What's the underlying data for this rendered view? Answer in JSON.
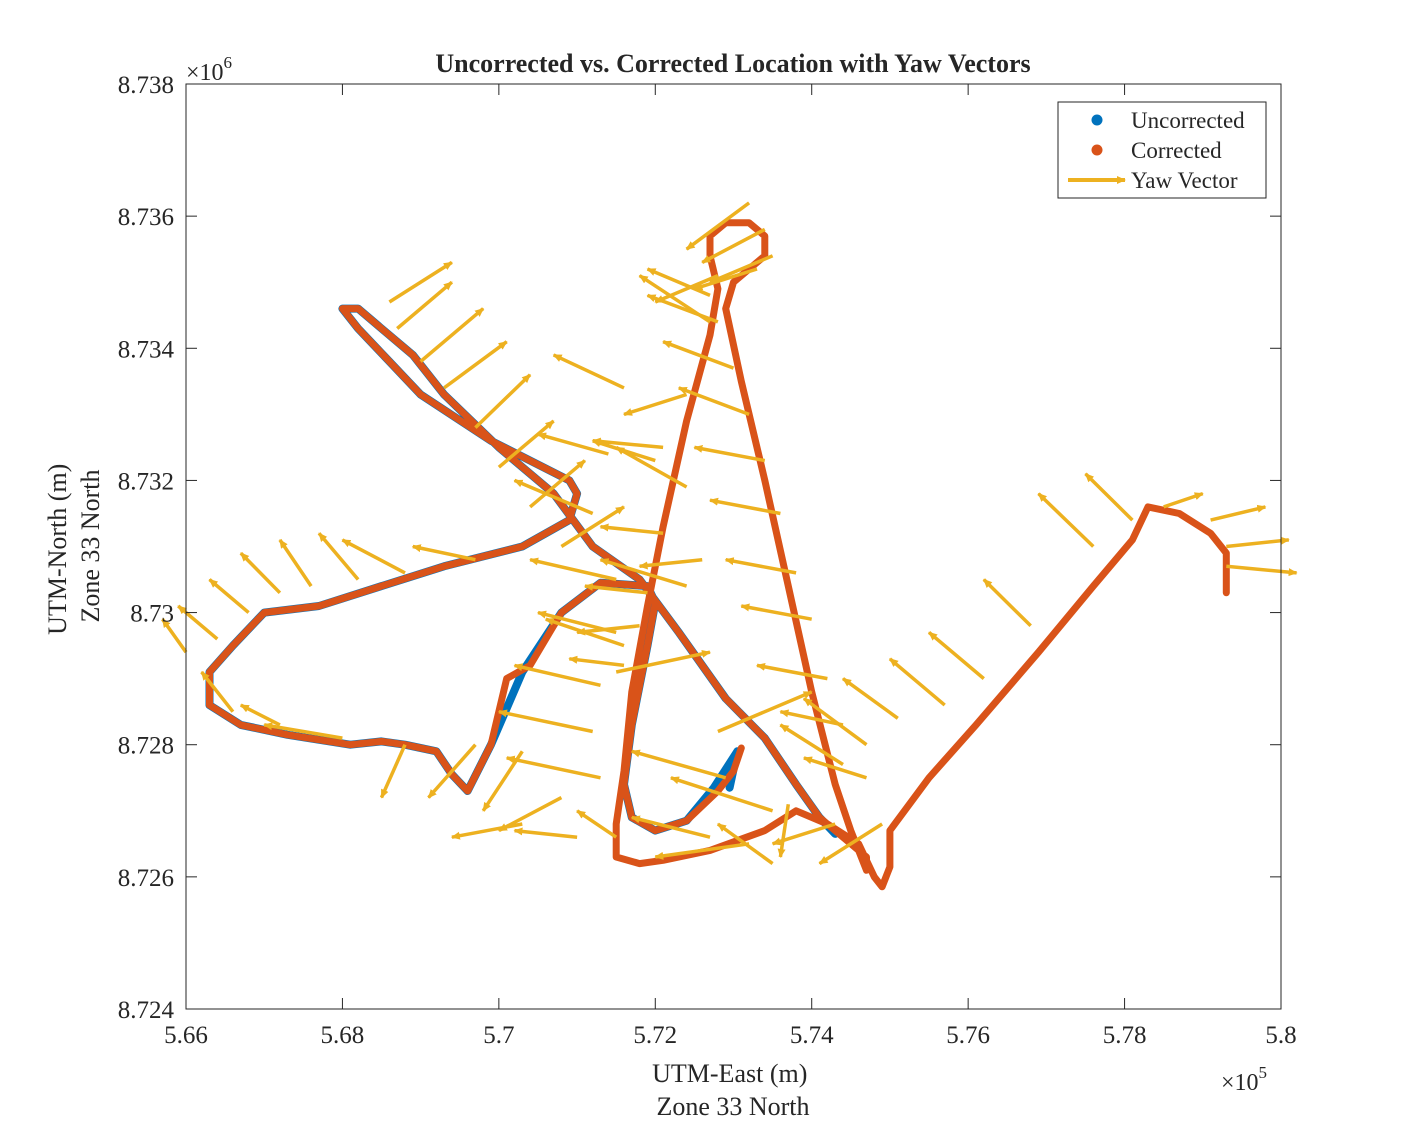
{
  "chart_data": {
    "type": "line",
    "title": "Uncorrected vs. Corrected Location with Yaw Vectors",
    "xlabel": [
      "UTM-East (m)",
      "Zone 33 North"
    ],
    "ylabel": [
      "UTM-North (m)",
      "Zone 33 North"
    ],
    "xlim": [
      566000,
      580000
    ],
    "ylim": [
      8724000,
      8738000
    ],
    "x_ticks": [
      566000,
      568000,
      570000,
      572000,
      574000,
      576000,
      578000,
      580000
    ],
    "x_tick_labels": [
      "5.66",
      "5.68",
      "5.7",
      "5.72",
      "5.74",
      "5.76",
      "5.78",
      "5.8"
    ],
    "y_ticks": [
      8724000,
      8726000,
      8728000,
      8730000,
      8732000,
      8734000,
      8736000,
      8738000
    ],
    "y_tick_labels": [
      "8.724",
      "8.726",
      "8.728",
      "8.73",
      "8.732",
      "8.734",
      "8.736",
      "8.738"
    ],
    "x_exponent": {
      "base": "×10",
      "exp": "5"
    },
    "y_exponent": {
      "base": "×10",
      "exp": "6"
    },
    "grid": false,
    "legend_position": "top-right",
    "colors": {
      "uncorrected": "#0072BD",
      "corrected": "#D95319",
      "yaw": "#EDB120"
    },
    "series": [
      {
        "name": "Uncorrected",
        "marker": "dot",
        "points": [
          [
            572950,
            8727350
          ],
          [
            573050,
            8727900
          ],
          [
            572750,
            8727350
          ],
          [
            572400,
            8726850
          ],
          [
            572000,
            8726700
          ],
          [
            571700,
            8726900
          ],
          [
            571600,
            8727400
          ],
          [
            571700,
            8728300
          ],
          [
            571900,
            8729500
          ],
          [
            572000,
            8730150
          ],
          [
            571900,
            8730400
          ],
          [
            571300,
            8730450
          ],
          [
            570800,
            8730000
          ],
          [
            570300,
            8729100
          ],
          [
            569900,
            8728000
          ],
          [
            569600,
            8727300
          ],
          [
            569400,
            8727550
          ],
          [
            569200,
            8727900
          ],
          [
            568800,
            8728000
          ],
          [
            568500,
            8728050
          ],
          [
            568100,
            8728000
          ],
          [
            567300,
            8728150
          ],
          [
            566700,
            8728300
          ],
          [
            566300,
            8728600
          ],
          [
            566300,
            8729100
          ],
          [
            566600,
            8729500
          ],
          [
            567000,
            8730000
          ],
          [
            567700,
            8730100
          ],
          [
            568500,
            8730400
          ],
          [
            569300,
            8730700
          ],
          [
            570300,
            8731000
          ],
          [
            570900,
            8731400
          ],
          [
            571000,
            8731800
          ],
          [
            570900,
            8732000
          ],
          [
            570400,
            8732300
          ],
          [
            569900,
            8732600
          ],
          [
            569000,
            8733300
          ],
          [
            568600,
            8733800
          ],
          [
            568200,
            8734300
          ],
          [
            568000,
            8734600
          ],
          [
            568200,
            8734600
          ],
          [
            568500,
            8734300
          ],
          [
            568900,
            8733900
          ],
          [
            569300,
            8733300
          ],
          [
            570000,
            8732500
          ],
          [
            570700,
            8731800
          ],
          [
            571200,
            8731000
          ],
          [
            571800,
            8730500
          ],
          [
            572300,
            8729700
          ],
          [
            572900,
            8728700
          ],
          [
            573400,
            8728100
          ],
          [
            573800,
            8727400
          ],
          [
            574100,
            8726900
          ],
          [
            574300,
            8726650
          ]
        ]
      },
      {
        "name": "Corrected",
        "marker": "dot",
        "points": [
          [
            573100,
            8727950
          ],
          [
            573000,
            8727600
          ],
          [
            572800,
            8727300
          ],
          [
            572400,
            8726850
          ],
          [
            572000,
            8726700
          ],
          [
            571700,
            8726900
          ],
          [
            571600,
            8727400
          ],
          [
            571700,
            8728300
          ],
          [
            571900,
            8729500
          ],
          [
            572000,
            8730150
          ],
          [
            571900,
            8730400
          ],
          [
            571300,
            8730450
          ],
          [
            570800,
            8730000
          ],
          [
            570400,
            8729200
          ],
          [
            570100,
            8729000
          ],
          [
            569900,
            8728000
          ],
          [
            569600,
            8727300
          ],
          [
            569400,
            8727550
          ],
          [
            569200,
            8727900
          ],
          [
            568800,
            8728000
          ],
          [
            568500,
            8728050
          ],
          [
            568100,
            8728000
          ],
          [
            567300,
            8728150
          ],
          [
            566700,
            8728300
          ],
          [
            566300,
            8728600
          ],
          [
            566300,
            8729100
          ],
          [
            566600,
            8729500
          ],
          [
            567000,
            8730000
          ],
          [
            567700,
            8730100
          ],
          [
            568500,
            8730400
          ],
          [
            569300,
            8730700
          ],
          [
            570300,
            8731000
          ],
          [
            570900,
            8731400
          ],
          [
            571000,
            8731800
          ],
          [
            570900,
            8732000
          ],
          [
            570400,
            8732300
          ],
          [
            569900,
            8732600
          ],
          [
            569000,
            8733300
          ],
          [
            568600,
            8733800
          ],
          [
            568200,
            8734300
          ],
          [
            568000,
            8734600
          ],
          [
            568200,
            8734600
          ],
          [
            568500,
            8734300
          ],
          [
            568900,
            8733900
          ],
          [
            569300,
            8733300
          ],
          [
            570000,
            8732500
          ],
          [
            570700,
            8731800
          ],
          [
            571200,
            8731000
          ],
          [
            571800,
            8730500
          ],
          [
            572300,
            8729700
          ],
          [
            572900,
            8728700
          ],
          [
            573400,
            8728100
          ],
          [
            573800,
            8727400
          ],
          [
            574100,
            8726900
          ],
          [
            574400,
            8726600
          ],
          [
            574700,
            8726300
          ],
          [
            574700,
            8726100
          ],
          [
            574500,
            8726700
          ],
          [
            574300,
            8727400
          ],
          [
            574000,
            8728800
          ],
          [
            573700,
            8730400
          ],
          [
            573400,
            8732000
          ],
          [
            573100,
            8733500
          ],
          [
            572900,
            8734600
          ],
          [
            573000,
            8735000
          ],
          [
            573400,
            8735400
          ],
          [
            573400,
            8735700
          ],
          [
            573200,
            8735900
          ],
          [
            572900,
            8735900
          ],
          [
            572700,
            8735700
          ],
          [
            572700,
            8735400
          ],
          [
            572800,
            8734900
          ],
          [
            572700,
            8734200
          ],
          [
            572400,
            8732900
          ],
          [
            572100,
            8731300
          ],
          [
            571900,
            8730100
          ],
          [
            571700,
            8728800
          ],
          [
            571600,
            8727600
          ],
          [
            571500,
            8726800
          ],
          [
            571500,
            8726300
          ],
          [
            571800,
            8726200
          ],
          [
            572100,
            8726250
          ],
          [
            572700,
            8726400
          ],
          [
            573400,
            8726700
          ],
          [
            573800,
            8727000
          ],
          [
            574200,
            8726800
          ],
          [
            574600,
            8726500
          ],
          [
            574800,
            8726000
          ],
          [
            574900,
            8725850
          ],
          [
            575000,
            8726150
          ],
          [
            575000,
            8726700
          ],
          [
            575500,
            8727500
          ],
          [
            576100,
            8728300
          ],
          [
            576900,
            8729400
          ],
          [
            577600,
            8730400
          ],
          [
            578100,
            8731100
          ],
          [
            578300,
            8731600
          ],
          [
            578700,
            8731500
          ],
          [
            579100,
            8731200
          ],
          [
            579300,
            8730900
          ],
          [
            579300,
            8730500
          ],
          [
            579300,
            8730300
          ]
        ]
      }
    ],
    "yaw_vectors_name": "Yaw Vector",
    "yaw_vectors": [
      [
        568600,
        8734700,
        800,
        600
      ],
      [
        568700,
        8734300,
        700,
        700
      ],
      [
        569000,
        8733800,
        800,
        800
      ],
      [
        569300,
        8733400,
        800,
        700
      ],
      [
        569700,
        8732800,
        700,
        800
      ],
      [
        570000,
        8732200,
        700,
        700
      ],
      [
        570400,
        8731600,
        700,
        700
      ],
      [
        570800,
        8731000,
        800,
        600
      ],
      [
        569700,
        8730800,
        -800,
        200
      ],
      [
        568800,
        8730600,
        -800,
        500
      ],
      [
        568200,
        8730500,
        -500,
        700
      ],
      [
        567600,
        8730400,
        -400,
        700
      ],
      [
        567200,
        8730300,
        -500,
        600
      ],
      [
        566800,
        8730000,
        -500,
        500
      ],
      [
        566400,
        8729600,
        -500,
        500
      ],
      [
        566000,
        8729400,
        -300,
        500
      ],
      [
        566600,
        8728500,
        -400,
        600
      ],
      [
        567200,
        8728300,
        -500,
        300
      ],
      [
        568000,
        8728100,
        -1000,
        200
      ],
      [
        568800,
        8728000,
        -300,
        -800
      ],
      [
        569700,
        8728000,
        -600,
        -800
      ],
      [
        570300,
        8727900,
        -500,
        -900
      ],
      [
        570800,
        8727200,
        -800,
        -500
      ],
      [
        570300,
        8726800,
        -900,
        -200
      ],
      [
        571000,
        8726600,
        -800,
        100
      ],
      [
        571500,
        8726600,
        -500,
        400
      ],
      [
        571300,
        8727500,
        -1200,
        300
      ],
      [
        571200,
        8728200,
        -1200,
        300
      ],
      [
        571300,
        8728900,
        -1100,
        300
      ],
      [
        571500,
        8729700,
        -1000,
        300
      ],
      [
        571500,
        8730500,
        -1100,
        300
      ],
      [
        571200,
        8731500,
        -1000,
        500
      ],
      [
        571400,
        8732400,
        -900,
        300
      ],
      [
        571600,
        8733400,
        -900,
        500
      ],
      [
        572100,
        8732500,
        -900,
        100
      ],
      [
        572400,
        8731900,
        -900,
        600
      ],
      [
        572600,
        8730800,
        -800,
        -100
      ],
      [
        572400,
        8730400,
        -1100,
        400
      ],
      [
        571600,
        8729500,
        -1000,
        400
      ],
      [
        571500,
        8729100,
        1200,
        300
      ],
      [
        572800,
        8728200,
        1200,
        600
      ],
      [
        572900,
        8727500,
        -1200,
        400
      ],
      [
        573500,
        8727000,
        -1300,
        500
      ],
      [
        572700,
        8726600,
        -1000,
        300
      ],
      [
        573200,
        8726500,
        -1200,
        -200
      ],
      [
        573500,
        8726200,
        -700,
        600
      ],
      [
        573700,
        8727100,
        -100,
        -800
      ],
      [
        574300,
        8726800,
        -800,
        -300
      ],
      [
        574400,
        8727700,
        -800,
        600
      ],
      [
        574700,
        8728000,
        -800,
        700
      ],
      [
        575100,
        8728400,
        -700,
        600
      ],
      [
        575700,
        8728600,
        -700,
        700
      ],
      [
        576200,
        8729000,
        -700,
        700
      ],
      [
        576800,
        8729800,
        -600,
        700
      ],
      [
        577600,
        8731000,
        -700,
        800
      ],
      [
        578100,
        8731400,
        -600,
        700
      ],
      [
        578500,
        8731600,
        500,
        200
      ],
      [
        579100,
        8731400,
        700,
        200
      ],
      [
        579300,
        8731000,
        800,
        100
      ],
      [
        579300,
        8730700,
        900,
        -100
      ],
      [
        574900,
        8726800,
        -800,
        -600
      ],
      [
        574700,
        8727500,
        -800,
        300
      ],
      [
        574400,
        8728300,
        -800,
        200
      ],
      [
        574200,
        8729000,
        -900,
        200
      ],
      [
        574000,
        8729900,
        -900,
        200
      ],
      [
        573800,
        8730600,
        -900,
        200
      ],
      [
        573600,
        8731500,
        -900,
        200
      ],
      [
        573400,
        8732300,
        -900,
        200
      ],
      [
        573200,
        8733000,
        -900,
        400
      ],
      [
        573000,
        8733700,
        -900,
        400
      ],
      [
        572800,
        8734400,
        -900,
        400
      ],
      [
        572700,
        8734800,
        -800,
        400
      ],
      [
        572800,
        8735100,
        -800,
        -400
      ],
      [
        573300,
        8735200,
        -800,
        -300
      ],
      [
        573500,
        8735400,
        -800,
        -400
      ],
      [
        573400,
        8735800,
        -800,
        -500
      ],
      [
        573200,
        8736200,
        -800,
        -700
      ],
      [
        572700,
        8734400,
        -900,
        700
      ],
      [
        572400,
        8733300,
        -800,
        -300
      ],
      [
        572000,
        8732300,
        -800,
        300
      ],
      [
        572100,
        8731200,
        -800,
        100
      ],
      [
        571900,
        8730300,
        -800,
        100
      ],
      [
        571800,
        8729800,
        -800,
        -100
      ],
      [
        571600,
        8729200,
        -700,
        100
      ]
    ]
  },
  "legend": {
    "items": [
      "Uncorrected",
      "Corrected",
      "Yaw Vector"
    ]
  }
}
